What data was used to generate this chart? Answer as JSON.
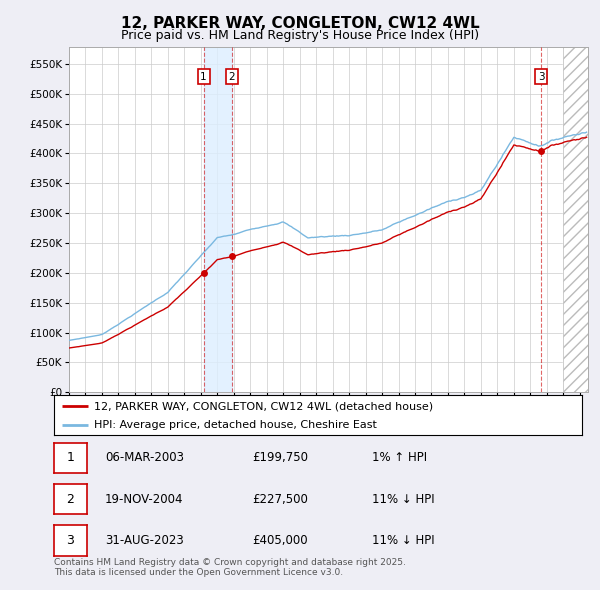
{
  "title": "12, PARKER WAY, CONGLETON, CW12 4WL",
  "subtitle": "Price paid vs. HM Land Registry's House Price Index (HPI)",
  "ylim": [
    0,
    578000
  ],
  "xlim_start": 1995.0,
  "xlim_end": 2026.5,
  "hpi_color": "#7ab8e0",
  "price_color": "#cc0000",
  "background_color": "#eeeef5",
  "plot_bg_color": "#ffffff",
  "grid_color": "#cccccc",
  "legend_line1": "12, PARKER WAY, CONGLETON, CW12 4WL (detached house)",
  "legend_line2": "HPI: Average price, detached house, Cheshire East",
  "sale_shade_color": "#ddeeff",
  "future_hatch_color": "#cccccc",
  "sales": [
    {
      "num": 1,
      "date": "06-MAR-2003",
      "price": 199750,
      "pct": "1%",
      "dir": "↑",
      "x": 2003.17
    },
    {
      "num": 2,
      "date": "19-NOV-2004",
      "price": 227500,
      "pct": "11%",
      "dir": "↓",
      "x": 2004.88
    },
    {
      "num": 3,
      "date": "31-AUG-2023",
      "price": 405000,
      "pct": "11%",
      "dir": "↓",
      "x": 2023.66
    }
  ],
  "footer": "Contains HM Land Registry data © Crown copyright and database right 2025.\nThis data is licensed under the Open Government Licence v3.0.",
  "title_fontsize": 11,
  "subtitle_fontsize": 9,
  "tick_fontsize": 7.5,
  "legend_fontsize": 8,
  "footer_fontsize": 6.5
}
